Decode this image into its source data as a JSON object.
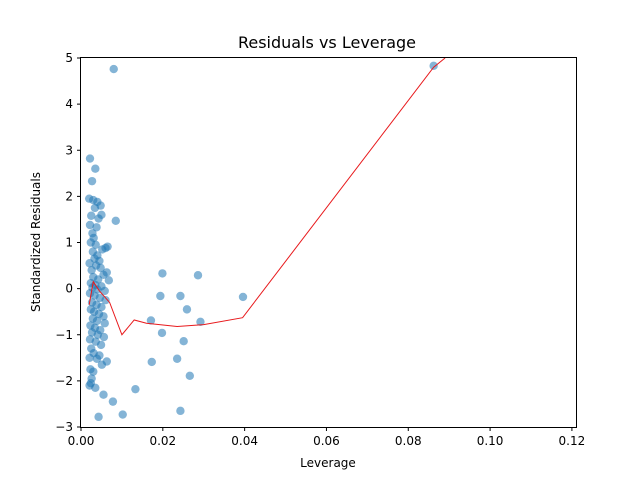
{
  "chart_data": {
    "type": "scatter",
    "title": "Residuals vs Leverage",
    "xlabel": "Leverage",
    "ylabel": "Standardized Residuals",
    "xlim": [
      0.0,
      0.121
    ],
    "ylim": [
      -3,
      5
    ],
    "grid": false,
    "x_ticks": [
      {
        "value": 0.0,
        "label": "0.00"
      },
      {
        "value": 0.02,
        "label": "0.02"
      },
      {
        "value": 0.04,
        "label": "0.04"
      },
      {
        "value": 0.06,
        "label": "0.06"
      },
      {
        "value": 0.08,
        "label": "0.08"
      },
      {
        "value": 0.1,
        "label": "0.10"
      },
      {
        "value": 0.12,
        "label": "0.12"
      }
    ],
    "y_ticks": [
      {
        "value": -3,
        "label": "−3"
      },
      {
        "value": -2,
        "label": "−2"
      },
      {
        "value": -1,
        "label": "−1"
      },
      {
        "value": 0,
        "label": "0"
      },
      {
        "value": 1,
        "label": "1"
      },
      {
        "value": 2,
        "label": "2"
      },
      {
        "value": 3,
        "label": "3"
      },
      {
        "value": 4,
        "label": "4"
      },
      {
        "value": 5,
        "label": "5"
      }
    ],
    "series": [
      {
        "kind": "scatter",
        "color": "#1f77b4",
        "opacity": 0.55,
        "points": [
          [
            0.008,
            4.76
          ],
          [
            0.0862,
            4.83
          ],
          [
            0.0022,
            2.82
          ],
          [
            0.0035,
            2.6
          ],
          [
            0.0027,
            2.33
          ],
          [
            0.002,
            1.95
          ],
          [
            0.003,
            1.92
          ],
          [
            0.004,
            1.88
          ],
          [
            0.0048,
            1.8
          ],
          [
            0.0034,
            1.75
          ],
          [
            0.005,
            1.6
          ],
          [
            0.0025,
            1.58
          ],
          [
            0.0043,
            1.52
          ],
          [
            0.0085,
            1.47
          ],
          [
            0.0038,
            1.33
          ],
          [
            0.0022,
            1.38
          ],
          [
            0.0028,
            1.2
          ],
          [
            0.0031,
            1.1
          ],
          [
            0.0024,
            1.0
          ],
          [
            0.0036,
            0.95
          ],
          [
            0.006,
            0.88
          ],
          [
            0.0065,
            0.91
          ],
          [
            0.0052,
            0.85
          ],
          [
            0.0029,
            0.8
          ],
          [
            0.004,
            0.72
          ],
          [
            0.0033,
            0.65
          ],
          [
            0.0045,
            0.6
          ],
          [
            0.0021,
            0.55
          ],
          [
            0.0037,
            0.5
          ],
          [
            0.0048,
            0.45
          ],
          [
            0.0026,
            0.4
          ],
          [
            0.0063,
            0.35
          ],
          [
            0.0055,
            0.3
          ],
          [
            0.003,
            0.25
          ],
          [
            0.0042,
            0.2
          ],
          [
            0.0068,
            0.18
          ],
          [
            0.0024,
            0.12
          ],
          [
            0.0035,
            0.08
          ],
          [
            0.005,
            0.05
          ],
          [
            0.0028,
            0.02
          ],
          [
            0.004,
            -0.02
          ],
          [
            0.0058,
            -0.05
          ],
          [
            0.0022,
            -0.1
          ],
          [
            0.0033,
            -0.15
          ],
          [
            0.0046,
            -0.2
          ],
          [
            0.006,
            -0.25
          ],
          [
            0.0027,
            -0.3
          ],
          [
            0.0038,
            -0.35
          ],
          [
            0.005,
            -0.4
          ],
          [
            0.0024,
            -0.45
          ],
          [
            0.0032,
            -0.5
          ],
          [
            0.0044,
            -0.55
          ],
          [
            0.0055,
            -0.6
          ],
          [
            0.0029,
            -0.65
          ],
          [
            0.0039,
            -0.7
          ],
          [
            0.0058,
            -0.75
          ],
          [
            0.0023,
            -0.8
          ],
          [
            0.0034,
            -0.85
          ],
          [
            0.0047,
            -0.9
          ],
          [
            0.0027,
            -0.95
          ],
          [
            0.0041,
            -1.0
          ],
          [
            0.0056,
            -1.05
          ],
          [
            0.0022,
            -1.1
          ],
          [
            0.0036,
            -1.15
          ],
          [
            0.0049,
            -1.22
          ],
          [
            0.0025,
            -1.3
          ],
          [
            0.0031,
            -1.4
          ],
          [
            0.0045,
            -1.45
          ],
          [
            0.0021,
            -1.5
          ],
          [
            0.0039,
            -1.52
          ],
          [
            0.0063,
            -1.58
          ],
          [
            0.0051,
            -1.65
          ],
          [
            0.0023,
            -1.75
          ],
          [
            0.003,
            -1.8
          ],
          [
            0.0026,
            -1.95
          ],
          [
            0.0024,
            -2.05
          ],
          [
            0.0021,
            -2.1
          ],
          [
            0.0035,
            -2.15
          ],
          [
            0.0055,
            -2.3
          ],
          [
            0.0078,
            -2.45
          ],
          [
            0.0043,
            -2.78
          ],
          [
            0.0102,
            -2.73
          ],
          [
            0.0133,
            -2.18
          ],
          [
            0.0199,
            0.33
          ],
          [
            0.0286,
            0.29
          ],
          [
            0.0194,
            -0.16
          ],
          [
            0.0243,
            -0.16
          ],
          [
            0.0396,
            -0.18
          ],
          [
            0.0259,
            -0.45
          ],
          [
            0.0292,
            -0.72
          ],
          [
            0.0171,
            -0.69
          ],
          [
            0.0198,
            -0.96
          ],
          [
            0.0251,
            -1.14
          ],
          [
            0.0173,
            -1.59
          ],
          [
            0.0235,
            -1.52
          ],
          [
            0.0266,
            -1.89
          ],
          [
            0.0243,
            -2.65
          ]
        ]
      },
      {
        "kind": "line",
        "color": "#e8191c",
        "points": [
          [
            0.002,
            -0.35
          ],
          [
            0.003,
            0.15
          ],
          [
            0.0045,
            -0.05
          ],
          [
            0.007,
            -0.3
          ],
          [
            0.01,
            -1.0
          ],
          [
            0.013,
            -0.68
          ],
          [
            0.016,
            -0.75
          ],
          [
            0.0235,
            -0.82
          ],
          [
            0.03,
            -0.78
          ],
          [
            0.0395,
            -0.63
          ],
          [
            0.0862,
            4.8
          ],
          [
            0.089,
            5.0
          ]
        ]
      }
    ]
  }
}
